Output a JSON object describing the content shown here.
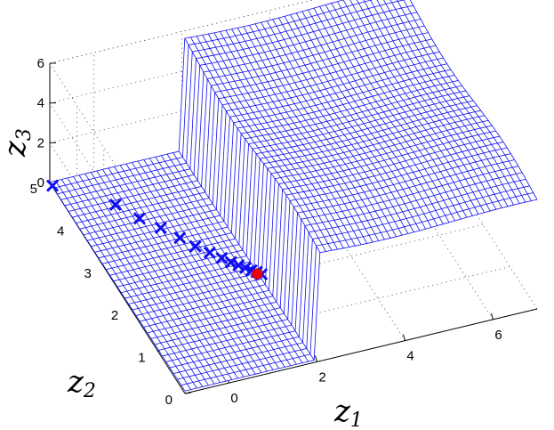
{
  "chart_data": {
    "type": "surface",
    "title": "",
    "axes": {
      "x": {
        "label": "z",
        "subscript": "1",
        "range": [
          -1,
          7
        ],
        "ticks": [
          "0",
          "2",
          "4",
          "6"
        ]
      },
      "y": {
        "label": "z",
        "subscript": "2",
        "range": [
          0,
          5
        ],
        "ticks": [
          "0",
          "1",
          "2",
          "3",
          "4",
          "5"
        ]
      },
      "z": {
        "label": "z",
        "subscript": "3",
        "range": [
          0,
          6
        ],
        "ticks": [
          "0",
          "2",
          "4",
          "6"
        ]
      }
    },
    "grid": true,
    "surface": {
      "color": "#1010ee",
      "description_regions": [
        {
          "z1_range": [
            -1,
            2
          ],
          "z3_level": 0.0
        },
        {
          "z1_range": [
            2,
            7
          ],
          "z3_level": 5.5
        }
      ]
    },
    "series": [
      {
        "marker": "x",
        "color": "#1010ee",
        "points": [
          [
            -1.0,
            4.9,
            0.05
          ],
          [
            0.0,
            4.2,
            0.05
          ],
          [
            0.3,
            3.8,
            0.05
          ],
          [
            0.6,
            3.5,
            0.05
          ],
          [
            0.85,
            3.2,
            0.05
          ],
          [
            1.05,
            2.95,
            0.05
          ],
          [
            1.25,
            2.75,
            0.05
          ],
          [
            1.42,
            2.58,
            0.05
          ],
          [
            1.55,
            2.45,
            0.05
          ],
          [
            1.66,
            2.35,
            0.05
          ],
          [
            1.76,
            2.26,
            0.05
          ],
          [
            1.85,
            2.18,
            0.05
          ],
          [
            1.93,
            2.12,
            0.05
          ],
          [
            2.0,
            2.05,
            0.05
          ]
        ]
      },
      {
        "marker": "dot",
        "color": "#ee0000",
        "points": [
          [
            1.92,
            2.08,
            0.05
          ]
        ]
      }
    ]
  }
}
